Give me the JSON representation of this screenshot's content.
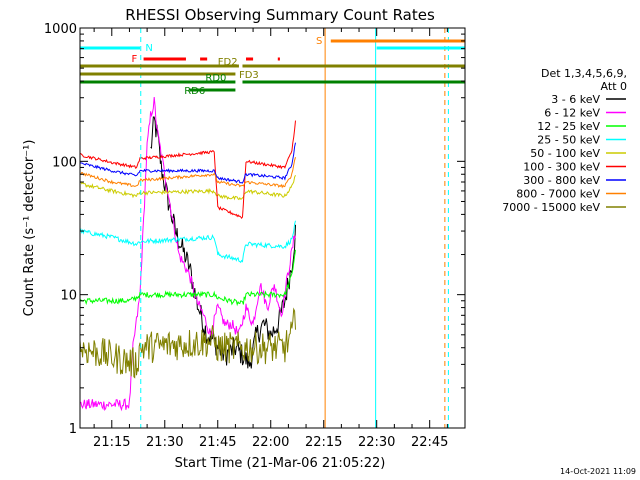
{
  "chart_data": {
    "type": "line",
    "title": "RHESSI Observing Summary Count Rates",
    "xlabel": "Start Time (21-Mar-06 21:05:22)",
    "ylabel": "Count Rate (s⁻¹ detector⁻¹)",
    "yscale": "log",
    "ylim": [
      1,
      1000
    ],
    "xlim_min": [
      6,
      115
    ],
    "grid": false,
    "legend_position": "right",
    "timestamp": "14-Oct-2021 11:09",
    "x_ticks": [
      {
        "min": 15,
        "label": "21:15"
      },
      {
        "min": 30,
        "label": "21:30"
      },
      {
        "min": 45,
        "label": "21:45"
      },
      {
        "min": 60,
        "label": "22:00"
      },
      {
        "min": 75,
        "label": "22:15"
      },
      {
        "min": 90,
        "label": "22:30"
      },
      {
        "min": 105,
        "label": "22:45"
      }
    ],
    "y_ticks": [
      {
        "value": 1,
        "label": "1"
      },
      {
        "value": 10,
        "label": "10"
      },
      {
        "value": 100,
        "label": "100"
      },
      {
        "value": 1000,
        "label": "1000"
      }
    ],
    "legend": {
      "header": [
        "Det 1,3,4,5,6,9,",
        "Att 0"
      ],
      "entries": [
        {
          "label": "3 - 6 keV",
          "color": "#000000"
        },
        {
          "label": "6 - 12 keV",
          "color": "#ff00ff"
        },
        {
          "label": "12 - 25 keV",
          "color": "#00ff00"
        },
        {
          "label": "25 - 50 keV",
          "color": "#00ffff"
        },
        {
          "label": "50 - 100 keV",
          "color": "#cccc00"
        },
        {
          "label": "100 - 300 keV",
          "color": "#ff0000"
        },
        {
          "label": "300 - 800 keV",
          "color": "#0000ff"
        },
        {
          "label": "800 - 7000 keV",
          "color": "#ff8000"
        },
        {
          "label": "7000 - 15000 keV",
          "color": "#808000"
        }
      ]
    },
    "flags": [
      {
        "label": "N",
        "color": "#00ffff",
        "segments": [
          [
            6,
            23
          ],
          [
            90,
            115
          ]
        ]
      },
      {
        "label": "F",
        "color": "#ff0000",
        "segments": [
          [
            24,
            36
          ],
          [
            40,
            42
          ],
          [
            53,
            55
          ],
          [
            62,
            62.6
          ]
        ]
      },
      {
        "label": "S",
        "color": "#ff8000",
        "segments": [
          [
            77,
            115
          ]
        ]
      },
      {
        "label": "FD2",
        "color": "#808000",
        "segments": [
          [
            6,
            51
          ],
          [
            52,
            115
          ]
        ]
      },
      {
        "label": "FD3",
        "color": "#808000",
        "segments": [
          [
            6,
            50
          ]
        ]
      },
      {
        "label": "RD0",
        "color": "#008000",
        "segments": [
          [
            6,
            50
          ],
          [
            52,
            115
          ]
        ]
      },
      {
        "label": "RD6",
        "color": "#008000",
        "segments": [
          [
            37,
            50
          ]
        ]
      }
    ],
    "vlines": [
      {
        "min": 6,
        "color": "#00ffff",
        "style": "solid"
      },
      {
        "min": 23.2,
        "color": "#00ffff",
        "style": "dashed"
      },
      {
        "min": 75.4,
        "color": "#ff8000",
        "style": "solid"
      },
      {
        "min": 89.7,
        "color": "#00ffff",
        "style": "solid"
      },
      {
        "min": 109.3,
        "color": "#ff8000",
        "style": "dashed"
      },
      {
        "min": 110.3,
        "color": "#00ffff",
        "style": "dashed"
      }
    ],
    "series": [
      {
        "name": "3 - 6 keV",
        "color": "#000000",
        "noise": 0.25,
        "points": [
          [
            26,
            120
          ],
          [
            27,
            200
          ],
          [
            28,
            150
          ],
          [
            29,
            90
          ],
          [
            31,
            50
          ],
          [
            33,
            30
          ],
          [
            35,
            22
          ],
          [
            37,
            16
          ],
          [
            38,
            12
          ],
          [
            39,
            9
          ],
          [
            41,
            6
          ],
          [
            42,
            5
          ],
          [
            44,
            4.5
          ],
          [
            45,
            4
          ],
          [
            47,
            3.5
          ],
          [
            50,
            4
          ],
          [
            52,
            3.5
          ],
          [
            54,
            3
          ],
          [
            56,
            5
          ],
          [
            58,
            6
          ],
          [
            60,
            5
          ],
          [
            62,
            6
          ],
          [
            64,
            9
          ],
          [
            66,
            17
          ],
          [
            67,
            30
          ]
        ]
      },
      {
        "name": "6 - 12 keV",
        "color": "#ff00ff",
        "noise": 0.12,
        "points": [
          [
            6,
            1.5
          ],
          [
            20,
            1.5
          ],
          [
            21,
            4
          ],
          [
            23,
            10
          ],
          [
            25,
            130
          ],
          [
            26,
            220
          ],
          [
            27,
            280
          ],
          [
            28,
            160
          ],
          [
            30,
            80
          ],
          [
            32,
            40
          ],
          [
            34,
            20
          ],
          [
            37,
            14
          ],
          [
            39,
            9
          ],
          [
            41,
            7
          ],
          [
            43,
            5
          ],
          [
            45,
            8
          ],
          [
            47,
            6
          ],
          [
            49,
            6
          ],
          [
            51,
            5
          ],
          [
            53,
            8
          ],
          [
            55,
            6
          ],
          [
            57,
            12
          ],
          [
            59,
            8
          ],
          [
            61,
            12
          ],
          [
            63,
            7
          ],
          [
            65,
            15
          ],
          [
            67,
            30
          ]
        ]
      },
      {
        "name": "12 - 25 keV",
        "color": "#00ff00",
        "noise": 0.06,
        "points": [
          [
            6,
            9
          ],
          [
            20,
            9
          ],
          [
            22,
            9.5
          ],
          [
            23,
            10
          ],
          [
            44,
            10
          ],
          [
            45,
            9.5
          ],
          [
            52,
            8.5
          ],
          [
            53,
            10
          ],
          [
            64,
            10
          ],
          [
            66,
            14
          ],
          [
            67,
            22
          ]
        ]
      },
      {
        "name": "25 - 50 keV",
        "color": "#00ffff",
        "noise": 0.05,
        "points": [
          [
            6,
            30
          ],
          [
            15,
            27
          ],
          [
            22,
            24
          ],
          [
            23,
            25
          ],
          [
            44,
            27
          ],
          [
            45,
            20
          ],
          [
            52,
            18
          ],
          [
            53,
            24
          ],
          [
            64,
            23
          ],
          [
            66,
            26
          ],
          [
            67,
            35
          ]
        ]
      },
      {
        "name": "50 - 100 keV",
        "color": "#cccc00",
        "noise": 0.04,
        "points": [
          [
            6,
            68
          ],
          [
            15,
            60
          ],
          [
            22,
            55
          ],
          [
            23,
            58
          ],
          [
            44,
            60
          ],
          [
            45,
            55
          ],
          [
            52,
            52
          ],
          [
            53,
            60
          ],
          [
            64,
            55
          ],
          [
            66,
            65
          ],
          [
            67,
            80
          ]
        ]
      },
      {
        "name": "100 - 300 keV",
        "color": "#ff0000",
        "noise": 0.03,
        "points": [
          [
            6,
            112
          ],
          [
            15,
            98
          ],
          [
            22,
            90
          ],
          [
            23,
            105
          ],
          [
            44,
            118
          ],
          [
            45,
            45
          ],
          [
            52,
            38
          ],
          [
            53,
            100
          ],
          [
            64,
            90
          ],
          [
            66,
            120
          ],
          [
            67,
            200
          ]
        ]
      },
      {
        "name": "300 - 800 keV",
        "color": "#0000ff",
        "noise": 0.03,
        "points": [
          [
            6,
            97
          ],
          [
            15,
            85
          ],
          [
            22,
            78
          ],
          [
            23,
            85
          ],
          [
            44,
            85
          ],
          [
            45,
            75
          ],
          [
            52,
            70
          ],
          [
            53,
            80
          ],
          [
            64,
            75
          ],
          [
            66,
            95
          ],
          [
            67,
            140
          ]
        ]
      },
      {
        "name": "800 - 7000 keV",
        "color": "#ff8000",
        "noise": 0.03,
        "points": [
          [
            6,
            82
          ],
          [
            15,
            70
          ],
          [
            22,
            65
          ],
          [
            23,
            72
          ],
          [
            44,
            80
          ],
          [
            45,
            70
          ],
          [
            52,
            65
          ],
          [
            53,
            70
          ],
          [
            64,
            65
          ],
          [
            66,
            80
          ],
          [
            67,
            110
          ]
        ]
      },
      {
        "name": "7000 - 15000 keV",
        "color": "#808000",
        "noise": 0.35,
        "points": [
          [
            6,
            4
          ],
          [
            14,
            3.5
          ],
          [
            22,
            3
          ],
          [
            23,
            4
          ],
          [
            44,
            4.5
          ],
          [
            45,
            4
          ],
          [
            52,
            4
          ],
          [
            53,
            4
          ],
          [
            64,
            4
          ],
          [
            66,
            5
          ],
          [
            67,
            7
          ]
        ]
      }
    ]
  }
}
